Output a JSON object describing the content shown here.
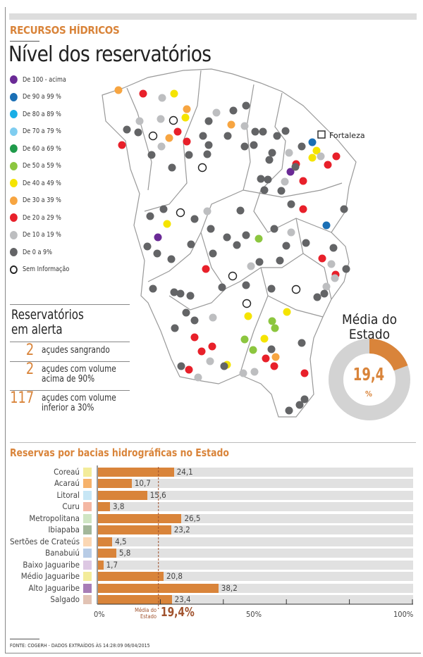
{
  "header": {
    "kicker": "RECURSOS HÍDRICOS",
    "title": "Nível dos reservatórios"
  },
  "map": {
    "city_label": "Fortaleza"
  },
  "legend": [
    {
      "label": "De 100 - acima",
      "color": "#6a2a96"
    },
    {
      "label": "De 90 a 99 %",
      "color": "#1a6fb5"
    },
    {
      "label": "De 80 a 89 %",
      "color": "#19aee6"
    },
    {
      "label": "De 70 a 79 %",
      "color": "#7fcdf0"
    },
    {
      "label": "De 60 a 69 %",
      "color": "#1f9a4a"
    },
    {
      "label": "De 50 a 59 %",
      "color": "#8cc63f"
    },
    {
      "label": "De 40 a 49 %",
      "color": "#f5e400"
    },
    {
      "label": "De 30 a 39 %",
      "color": "#f7a541"
    },
    {
      "label": "De 20 a 29 %",
      "color": "#e8202a"
    },
    {
      "label": "De 10 a 19 %",
      "color": "#bdbec0"
    },
    {
      "label": "De 0 a 9%",
      "color": "#636466"
    },
    {
      "label": "Sem Informação",
      "color": "open"
    }
  ],
  "alert": {
    "title_line1": "Reservatórios",
    "title_line2": "em alerta",
    "items": [
      {
        "number": "2",
        "line1": "açudes sangrando",
        "line2": ""
      },
      {
        "number": "2",
        "line1": "açudes com volume",
        "line2": "acima de 90%"
      },
      {
        "number": "117",
        "line1": "açudes com volume",
        "line2": "inferior a 30%"
      }
    ]
  },
  "state_average": {
    "title_line1": "Média do",
    "title_line2": "Estado",
    "value": "19,4",
    "unit": "%",
    "percent": 19.4
  },
  "chart_data": {
    "type": "bar",
    "title": "Reservas por bacias hidrográficas no Estado",
    "categories": [
      "Coreaú",
      "Acaraú",
      "Litoral",
      "Curu",
      "Metropolitana",
      "Ibiapaba",
      "Sertões de Crateús",
      "Banabuiú",
      "Baixo Jaguaribe",
      "Médio Jaguaribe",
      "Alto Jaguaribe",
      "Salgado"
    ],
    "values": [
      24.1,
      10.7,
      15.6,
      3.8,
      26.5,
      23.2,
      4.5,
      5.8,
      1.7,
      20.8,
      38.2,
      23.4
    ],
    "value_labels": [
      "24,1",
      "10,7",
      "15,6",
      "3,8",
      "26,5",
      "23,2",
      "4,5",
      "5,8",
      "1,7",
      "20,8",
      "38,2",
      "23,4"
    ],
    "swatch_colors": [
      "#f3ec9a",
      "#f6b26b",
      "#c7e6f5",
      "#f4b7a3",
      "#cfe5c3",
      "#a3b79a",
      "#fbd7b4",
      "#b8cce6",
      "#ddc8e3",
      "#f3ec9a",
      "#a77db6",
      "#e2c3b4"
    ],
    "bar_color": "#d9843a",
    "xlim": [
      0,
      100
    ],
    "x_ticks": [
      "0%",
      "50%",
      "100%"
    ],
    "reference": {
      "label_line1": "Média do",
      "label_line2": "Estado",
      "value": 19.4,
      "value_label": "19,4%"
    }
  },
  "footer": {
    "source": "FONTE: COGERH - DADOS EXTRAÍDOS ÀS 14:28:09 06/04/2015"
  }
}
